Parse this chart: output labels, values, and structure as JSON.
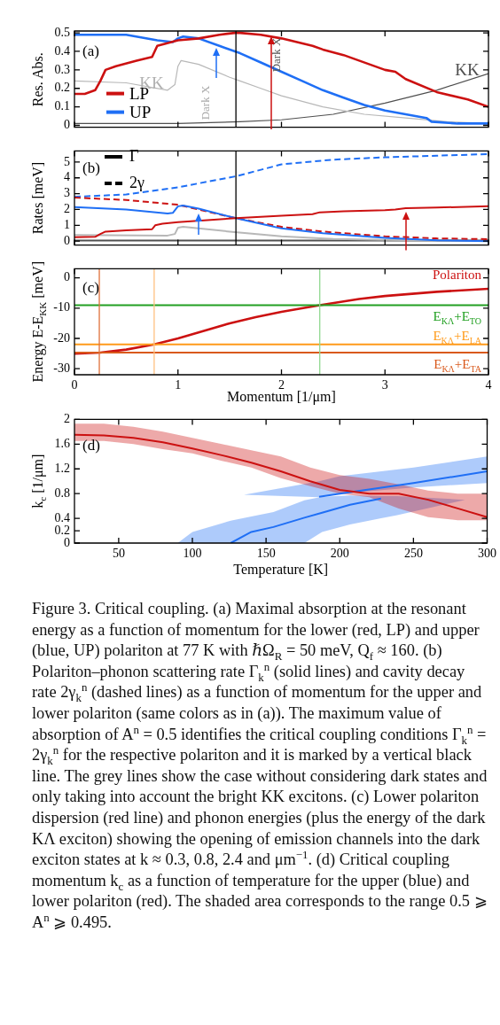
{
  "chart_data": [
    {
      "type": "line",
      "ylabel": "Res. Abs.",
      "xlim": [
        0,
        4
      ],
      "xticks": [
        0,
        1,
        2,
        3,
        4
      ],
      "ylim": [
        -0.01,
        0.51
      ],
      "yticks": [
        0,
        0.1,
        0.2,
        0.3,
        0.4,
        0.5
      ],
      "tick_labels": "y",
      "legend": "bottom left",
      "marker": "none",
      "series": [
        {
          "name": "LP",
          "color": "#cc1111",
          "x": [
            0,
            0.1,
            0.2,
            0.25,
            0.3,
            0.4,
            0.6,
            0.75,
            0.8,
            1.0,
            1.2,
            1.4,
            1.55,
            1.6,
            1.8,
            2.0,
            2.3,
            2.4,
            2.6,
            3.0,
            3.1,
            3.2,
            3.5,
            3.8,
            4
          ],
          "values": [
            0.17,
            0.17,
            0.19,
            0.24,
            0.3,
            0.32,
            0.35,
            0.37,
            0.43,
            0.46,
            0.47,
            0.49,
            0.5,
            0.5,
            0.49,
            0.47,
            0.43,
            0.41,
            0.38,
            0.3,
            0.29,
            0.25,
            0.18,
            0.14,
            0.1
          ]
        },
        {
          "name": "UP",
          "color": "#1f6ff5",
          "x": [
            0,
            0.5,
            0.8,
            0.95,
            1.0,
            1.05,
            1.2,
            1.4,
            1.6,
            1.8,
            2.0,
            2.2,
            2.4,
            2.6,
            2.8,
            3.0,
            3.2,
            3.4,
            3.45,
            3.7,
            4.0
          ],
          "values": [
            0.49,
            0.49,
            0.46,
            0.45,
            0.47,
            0.48,
            0.47,
            0.43,
            0.39,
            0.34,
            0.29,
            0.24,
            0.19,
            0.15,
            0.11,
            0.08,
            0.06,
            0.04,
            0.02,
            0.01,
            0.01
          ]
        },
        {
          "color": "#b8b8b8",
          "x": [
            0,
            0.5,
            0.9,
            0.97,
            1.0,
            1.03,
            1.2,
            1.5,
            1.6,
            1.8,
            2.0,
            2.4,
            2.8,
            3.2,
            3.6,
            4
          ],
          "values": [
            0.24,
            0.23,
            0.19,
            0.22,
            0.32,
            0.35,
            0.33,
            0.26,
            0.24,
            0.2,
            0.16,
            0.1,
            0.06,
            0.04,
            0.02,
            0.01
          ]
        },
        {
          "color": "#505050",
          "x": [
            0,
            1,
            1.6,
            2,
            2.5,
            3,
            3.5,
            4
          ],
          "values": [
            0.01,
            0.01,
            0.02,
            0.03,
            0.06,
            0.12,
            0.19,
            0.28
          ]
        }
      ],
      "ref_lines": [
        {
          "axis": "x",
          "value": 1.56,
          "color": "#000000"
        }
      ],
      "annotations": [
        "(a)",
        "Dark X",
        "Dark X",
        "KK",
        "KK"
      ]
    },
    {
      "type": "line",
      "ylabel": "Rates [meV]",
      "xlim": [
        0,
        4
      ],
      "xticks": [
        0,
        1,
        2,
        3,
        4
      ],
      "ylim": [
        -0.25,
        5.7
      ],
      "yticks": [
        0,
        1,
        2,
        3,
        4,
        5
      ],
      "tick_labels": "y",
      "marker": "none",
      "series": [
        {
          "color": "#cc1111",
          "line_style": "solid",
          "x": [
            0,
            0.2,
            0.25,
            0.3,
            0.5,
            0.75,
            0.78,
            0.85,
            1,
            1.56,
            2,
            2.3,
            2.37,
            2.6,
            3,
            3.1,
            3.2,
            3.5,
            4
          ],
          "values": [
            0.25,
            0.27,
            0.45,
            0.6,
            0.68,
            0.75,
            1.0,
            1.1,
            1.2,
            1.45,
            1.6,
            1.7,
            1.82,
            1.88,
            1.95,
            2.0,
            2.08,
            2.12,
            2.2
          ]
        },
        {
          "color": "#1f6ff5",
          "line_style": "solid",
          "x": [
            0,
            0.5,
            0.9,
            0.95,
            1.0,
            1.05,
            1.2,
            1.56,
            2,
            2.4,
            3,
            3.5,
            4
          ],
          "values": [
            2.15,
            2.0,
            1.75,
            1.78,
            2.2,
            2.25,
            2.05,
            1.45,
            0.8,
            0.5,
            0.2,
            0.05,
            0
          ]
        },
        {
          "color": "#cc1111",
          "line_style": "dashed",
          "x": [
            0,
            0.5,
            1,
            1.56,
            2,
            2.4,
            3,
            3.5,
            4
          ],
          "values": [
            2.75,
            2.6,
            2.3,
            1.45,
            0.9,
            0.6,
            0.3,
            0.17,
            0.12
          ]
        },
        {
          "color": "#1f6ff5",
          "line_style": "dashed",
          "x": [
            0,
            0.5,
            1,
            1.56,
            2,
            2.5,
            3,
            3.5,
            4
          ],
          "values": [
            2.8,
            2.95,
            3.4,
            4.1,
            4.85,
            5.15,
            5.3,
            5.4,
            5.5
          ]
        },
        {
          "color": "#b8b8b8",
          "line_style": "solid",
          "x": [
            0,
            0.9,
            0.97,
            1.0,
            1.05,
            1.5,
            2,
            2.5,
            3,
            3.5
          ],
          "values": [
            0.38,
            0.35,
            0.45,
            0.85,
            0.9,
            0.6,
            0.3,
            0.13,
            0.08,
            0.03
          ]
        },
        {
          "color": "#505050",
          "line_style": "solid",
          "x": [
            0,
            4
          ],
          "values": [
            0.03,
            0.03
          ]
        }
      ],
      "ref_lines": [
        {
          "axis": "x",
          "value": 1.56,
          "color": "#000000"
        }
      ],
      "annotations": [
        "(b)",
        "Γ",
        "2γ"
      ]
    },
    {
      "type": "line",
      "xlabel": "Momentum [1/μm]",
      "ylabel": "Energy E-E$_{KK}$ [meV]",
      "xlim": [
        0,
        4
      ],
      "xticks": [
        0,
        1,
        2,
        3,
        4
      ],
      "ylim": [
        -32,
        3
      ],
      "yticks": [
        -30,
        -20,
        -10,
        0
      ],
      "marker": "none",
      "series": [
        {
          "name": "Polariton",
          "color": "#cc1111",
          "x": [
            0,
            0.25,
            0.5,
            0.77,
            1,
            1.25,
            1.5,
            1.75,
            2,
            2.37,
            2.75,
            3,
            3.5,
            4
          ],
          "values": [
            -25,
            -24.7,
            -23.7,
            -22,
            -20,
            -17.5,
            -15,
            -13,
            -11.2,
            -9,
            -7,
            -6,
            -4.6,
            -3.6
          ]
        }
      ],
      "ref_lines": [
        {
          "axis": "y",
          "value": -9,
          "label": "E$_{KΛ}$+E$_{TO}$",
          "color": "#22a022"
        },
        {
          "axis": "y",
          "value": -22,
          "label": "E$_{KΛ}$+E$_{LA}$",
          "color": "#ff9a1a"
        },
        {
          "axis": "y",
          "value": -24.7,
          "label": "E$_{KΛ}$+E$_{TA}$",
          "color": "#d9591c"
        },
        {
          "axis": "x",
          "value": 0.24,
          "color": "#e0703a"
        },
        {
          "axis": "x",
          "value": 0.77,
          "color": "#ffc080"
        },
        {
          "axis": "x",
          "value": 2.37,
          "color": "#90d890"
        }
      ],
      "annotations": [
        "(c)"
      ]
    },
    {
      "type": "line",
      "xlabel": "Temperature [K]",
      "ylabel": "k$_{c}$ [1/μm]",
      "xlim": [
        20,
        300
      ],
      "xticks": [
        50,
        100,
        150,
        200,
        250,
        300
      ],
      "ylim": [
        0,
        2
      ],
      "yticks": [
        0,
        0.2,
        0.4,
        0.8,
        1.2,
        1.6,
        2
      ],
      "marker": "none",
      "series": [
        {
          "color": "#cc1111",
          "x": [
            20,
            40,
            60,
            80,
            100,
            120,
            140,
            160,
            180,
            200,
            220,
            240,
            260,
            280,
            300
          ],
          "values": [
            1.75,
            1.74,
            1.7,
            1.63,
            1.53,
            1.42,
            1.3,
            1.16,
            1.0,
            0.86,
            0.8,
            0.8,
            0.7,
            0.56,
            0.42
          ],
          "lower": [
            1.65,
            1.65,
            1.6,
            1.52,
            1.45,
            1.33,
            1.22,
            1.05,
            0.92,
            0.8,
            0.74,
            0.56,
            0.42,
            0.37,
            0.37
          ],
          "upper": [
            1.93,
            1.93,
            1.88,
            1.8,
            1.7,
            1.6,
            1.5,
            1.4,
            1.22,
            1.1,
            1.04,
            0.95,
            0.85,
            0.8,
            0.8
          ]
        },
        {
          "color": "#1f6ff5",
          "x": [
            90,
            100,
            120,
            126,
            140,
            155,
            176,
            188,
            207,
            228,
            239,
            285
          ],
          "values": [
            null,
            null,
            null,
            0,
            0.18,
            0.26,
            0.41,
            0.49,
            0.62,
            0.72,
            null,
            null
          ],
          "lower": [
            0,
            0,
            0,
            0,
            0,
            0,
            0,
            0.18,
            0.3,
            0.4,
            0.45,
            0.7
          ],
          "upper": [
            0,
            0.18,
            0.32,
            0.36,
            0.43,
            0.5,
            0.69,
            0.75,
            0.77,
            0.76,
            0.76,
            0.7
          ]
        },
        {
          "color": "#1f6ff5",
          "x": [
            135,
            186,
            200,
            250,
            300
          ],
          "values": [
            null,
            0.75,
            0.8,
            0.97,
            1.16
          ],
          "lower": [
            0.78,
            0.74,
            0.8,
            0.9,
            0.97
          ],
          "upper": [
            0.78,
            1.0,
            1.08,
            1.22,
            1.4
          ]
        }
      ],
      "annotations": [
        "(d)",
        "Figure 3. Critical coupling. (a) Maximal absorption at the resonant energy as a function of momentum for the lower (red, LP) and upper (blue, UP) polariton at 77 K with ℏΩ$_{R}$ = 50 meV, Q$_{f}$ ≈ 160. (b) Polariton–phonon scattering rate Γ$_{k}$$^{n}$ (solid lines) and cavity decay rate 2γ$_{k}$$^{n}$ (dashed lines) as a function of momentum for the upper and lower polariton (same colors as in (a)). The maximum value of absorption of A$^{n}$ = 0.5 identifies the critical coupling conditions Γ$_{k}$$^{n}$ = 2γ$_{k}$$^{n}$ for the respective polariton and it is marked by a vertical black line. The grey lines show the case without considering dark states and only taking into account the bright KK excitons. (c) Lower polariton dispersion (red line) and phonon energies (plus the energy of the dark KΛ exciton) showing the opening of emission channels into the dark exciton states at k ≈ 0.3, 0.8, 2.4 and μm$^{−1}$. (d) Critical coupling momentum k$_{c}$ as a function of temperature for the upper (blue) and lower polariton (red). The shaded area corresponds to the range 0.5 ⩾ A$^{n}$ ⩾ 0.495."
      ]
    }
  ]
}
